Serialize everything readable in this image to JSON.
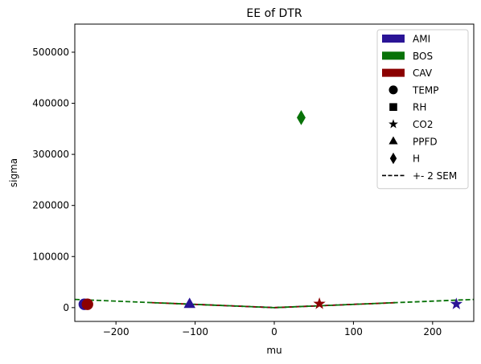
{
  "chart_data": {
    "type": "scatter",
    "title": "EE of DTR",
    "xlabel": "mu",
    "ylabel": "sigma",
    "xlim": [
      -252,
      252
    ],
    "ylim": [
      -27000,
      555000
    ],
    "xticks": [
      -200,
      -100,
      0,
      100,
      200
    ],
    "yticks": [
      0,
      100000,
      200000,
      300000,
      400000,
      500000
    ],
    "grid": false,
    "legend_position": "top-right",
    "legend": [
      {
        "label": "AMI",
        "kind": "patch",
        "color": "#2a1496"
      },
      {
        "label": "BOS",
        "kind": "patch",
        "color": "#087208"
      },
      {
        "label": "CAV",
        "kind": "patch",
        "color": "#8b0000"
      },
      {
        "label": "TEMP",
        "kind": "marker",
        "marker": "circle"
      },
      {
        "label": "RH",
        "kind": "marker",
        "marker": "square"
      },
      {
        "label": "CO2",
        "kind": "marker",
        "marker": "star"
      },
      {
        "label": "PPFD",
        "kind": "marker",
        "marker": "triangle"
      },
      {
        "label": "H",
        "kind": "marker",
        "marker": "diamond"
      },
      {
        "label": "+- 2 SEM",
        "kind": "line",
        "dash": "dashed"
      }
    ],
    "points": [
      {
        "group": "BOS",
        "variable": "H",
        "marker": "diamond",
        "color": "#087208",
        "x": 34,
        "y": 372000
      },
      {
        "group": "AMI",
        "variable": "CO2",
        "marker": "star",
        "color": "#2a1496",
        "x": 230,
        "y": 7000
      },
      {
        "group": "CAV",
        "variable": "CO2",
        "marker": "star",
        "color": "#8b0000",
        "x": 57,
        "y": 7500
      },
      {
        "group": "AMI",
        "variable": "PPFD",
        "marker": "triangle",
        "color": "#2a1496",
        "x": -107,
        "y": 7000
      },
      {
        "group": "AMI",
        "variable": "TEMP",
        "marker": "circle",
        "color": "#2a1496",
        "x": -240,
        "y": 6500
      },
      {
        "group": "CAV",
        "variable": "TEMP",
        "marker": "circle",
        "color": "#8b0000",
        "x": -236,
        "y": 6500
      }
    ],
    "sem_lines": [
      {
        "group": "AMI",
        "color": "#2a1496",
        "x": [
          -110,
          0,
          110
        ],
        "y": [
          7000,
          0,
          7000
        ]
      },
      {
        "group": "CAV",
        "color": "#8b0000",
        "x": [
          -155,
          0,
          155
        ],
        "y": [
          9800,
          0,
          9800
        ]
      },
      {
        "group": "BOS",
        "color": "#087208",
        "x": [
          -252,
          0,
          252
        ],
        "y": [
          16000,
          0,
          16000
        ]
      }
    ]
  }
}
